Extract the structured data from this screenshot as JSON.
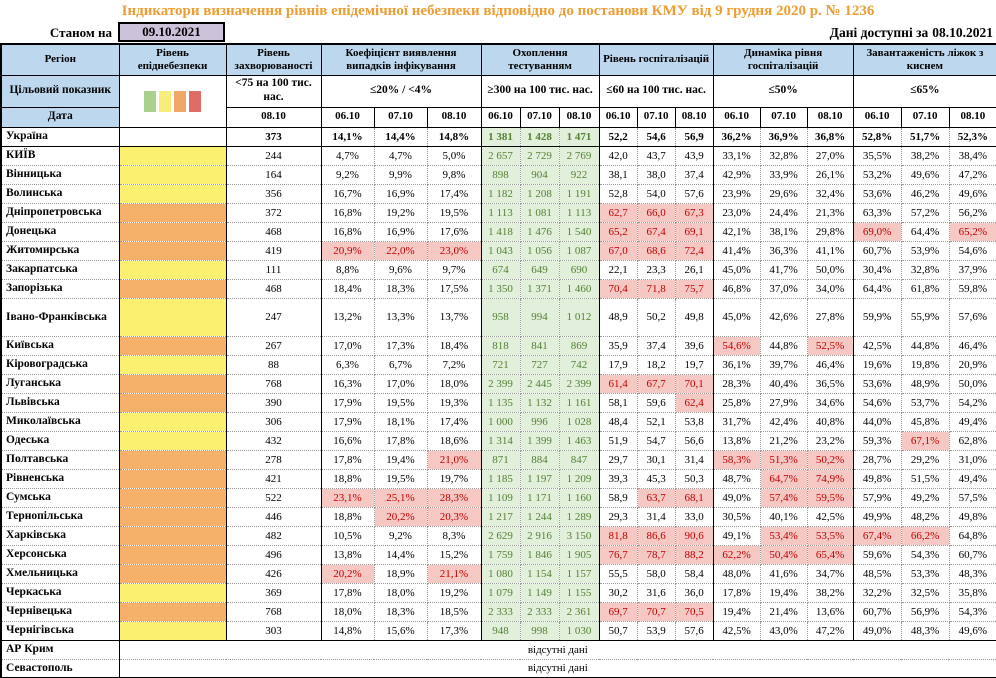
{
  "title": "Індикатори визначення рівнів епідемічної небезпеки відповідно до постанови КМУ від 9 грудня 2020 р. № 1236",
  "topbar": {
    "as_of_label": "Станом на",
    "as_of_date": "09.10.2021",
    "available_label": "Дані доступні за",
    "available_date": "08.10.2021"
  },
  "header": {
    "region_label": "Регіон",
    "target_label": "Цільовий показник",
    "date_label": "Дата",
    "legend_colors": [
      "#A9D18E",
      "#F7EE7A",
      "#F0A868",
      "#DD6B66"
    ],
    "groups": [
      {
        "label": "Рівень епіднебезпеки",
        "target": "",
        "dates": []
      },
      {
        "label": "Рівень захворюваності",
        "target": "<75 на 100 тис. нас.",
        "dates": [
          "08.10"
        ]
      },
      {
        "label": "Коефіцієнт виявлення випадків інфікування",
        "target": "≤20% / <4%",
        "dates": [
          "06.10",
          "07.10",
          "08.10"
        ]
      },
      {
        "label": "Охоплення тестуванням",
        "target": "≥300 на 100 тис. нас.",
        "dates": [
          "06.10",
          "07.10",
          "08.10"
        ]
      },
      {
        "label": "Рівень госпіталізацій",
        "target": "≤60 на 100 тис. нас.",
        "dates": [
          "06.10",
          "07.10",
          "08.10"
        ]
      },
      {
        "label": "Динаміка рівня госпіталізацій",
        "target": "≤50%",
        "dates": [
          "06.10",
          "07.10",
          "08.10"
        ]
      },
      {
        "label": "Завантаженість ліжок з киснем",
        "target": "≤65%",
        "dates": [
          "06.10",
          "07.10",
          "08.10"
        ]
      }
    ]
  },
  "colors": {
    "green": "#A9D18E",
    "yellow": "#FBF06F",
    "orange": "#F5B06A",
    "red": "#DD6B66"
  },
  "rows": [
    {
      "region": "Україна",
      "level": "",
      "bold": true,
      "inc": "373",
      "coef": [
        "14,1%",
        "14,4%",
        "14,8%"
      ],
      "test": [
        "1 381",
        "1 428",
        "1 471"
      ],
      "hosp": [
        "52,2",
        "54,6",
        "56,9"
      ],
      "dyn": [
        "36,2%",
        "36,9%",
        "36,8%"
      ],
      "bed": [
        "52,8%",
        "51,7%",
        "52,3%"
      ]
    },
    {
      "region": "КИЇВ",
      "level": "yellow",
      "inc": "244",
      "coef": [
        "4,7%",
        "4,7%",
        "5,0%"
      ],
      "test": [
        "2 657",
        "2 729",
        "2 769"
      ],
      "hosp": [
        "42,0",
        "43,7",
        "43,9"
      ],
      "dyn": [
        "33,1%",
        "32,8%",
        "27,0%"
      ],
      "bed": [
        "35,5%",
        "38,2%",
        "38,4%"
      ]
    },
    {
      "region": "Вінницька",
      "level": "yellow",
      "inc": "164",
      "coef": [
        "9,2%",
        "9,9%",
        "9,8%"
      ],
      "test": [
        "898",
        "904",
        "922"
      ],
      "hosp": [
        "38,1",
        "38,0",
        "37,4"
      ],
      "dyn": [
        "42,9%",
        "33,9%",
        "26,1%"
      ],
      "bed": [
        "53,2%",
        "49,6%",
        "47,2%"
      ]
    },
    {
      "region": "Волинська",
      "level": "yellow",
      "inc": "356",
      "coef": [
        "16,7%",
        "16,9%",
        "17,4%"
      ],
      "test": [
        "1 182",
        "1 208",
        "1 191"
      ],
      "hosp": [
        "52,8",
        "54,0",
        "57,6"
      ],
      "dyn": [
        "23,9%",
        "29,6%",
        "32,4%"
      ],
      "bed": [
        "53,6%",
        "46,2%",
        "49,6%"
      ]
    },
    {
      "region": "Дніпропетровська",
      "level": "orange",
      "inc": "372",
      "coef": [
        "16,8%",
        "19,2%",
        "19,5%"
      ],
      "test": [
        "1 113",
        "1 081",
        "1 113"
      ],
      "hosp": [
        "62,7",
        "66,0",
        "67,3"
      ],
      "hosp_hl": [
        1,
        1,
        1
      ],
      "dyn": [
        "23,0%",
        "24,4%",
        "21,3%"
      ],
      "bed": [
        "63,3%",
        "57,2%",
        "56,2%"
      ]
    },
    {
      "region": "Донецька",
      "level": "orange",
      "inc": "468",
      "coef": [
        "16,8%",
        "16,9%",
        "17,6%"
      ],
      "test": [
        "1 418",
        "1 476",
        "1 540"
      ],
      "hosp": [
        "65,2",
        "67,4",
        "69,1"
      ],
      "hosp_hl": [
        1,
        1,
        1
      ],
      "dyn": [
        "42,1%",
        "38,1%",
        "29,8%"
      ],
      "bed": [
        "69,0%",
        "64,4%",
        "65,2%"
      ],
      "bed_hl": [
        1,
        0,
        1
      ]
    },
    {
      "region": "Житомирська",
      "level": "orange",
      "inc": "419",
      "coef": [
        "20,9%",
        "22,0%",
        "23,0%"
      ],
      "coef_hl": [
        1,
        1,
        1
      ],
      "test": [
        "1 043",
        "1 056",
        "1 087"
      ],
      "hosp": [
        "67,0",
        "68,6",
        "72,4"
      ],
      "hosp_hl": [
        1,
        1,
        1
      ],
      "dyn": [
        "41,4%",
        "36,3%",
        "41,1%"
      ],
      "bed": [
        "60,7%",
        "53,9%",
        "54,6%"
      ]
    },
    {
      "region": "Закарпатська",
      "level": "yellow",
      "inc": "111",
      "coef": [
        "8,8%",
        "9,6%",
        "9,7%"
      ],
      "test": [
        "674",
        "649",
        "690"
      ],
      "hosp": [
        "22,1",
        "23,3",
        "26,1"
      ],
      "dyn": [
        "45,0%",
        "41,7%",
        "50,0%"
      ],
      "bed": [
        "30,4%",
        "32,8%",
        "37,9%"
      ]
    },
    {
      "region": "Запорізька",
      "level": "orange",
      "inc": "468",
      "coef": [
        "18,4%",
        "18,3%",
        "17,5%"
      ],
      "test": [
        "1 350",
        "1 371",
        "1 460"
      ],
      "hosp": [
        "70,4",
        "71,8",
        "75,7"
      ],
      "hosp_hl": [
        1,
        1,
        1
      ],
      "dyn": [
        "46,8%",
        "37,0%",
        "34,0%"
      ],
      "bed": [
        "64,4%",
        "61,8%",
        "59,8%"
      ]
    },
    {
      "region": "Івано-Франківська",
      "level": "yellow",
      "tall": true,
      "inc": "247",
      "coef": [
        "13,2%",
        "13,3%",
        "13,7%"
      ],
      "test": [
        "958",
        "994",
        "1 012"
      ],
      "hosp": [
        "48,9",
        "50,2",
        "49,8"
      ],
      "dyn": [
        "45,0%",
        "42,6%",
        "27,8%"
      ],
      "bed": [
        "59,9%",
        "55,9%",
        "57,6%"
      ]
    },
    {
      "region": "Київська",
      "level": "orange",
      "inc": "267",
      "coef": [
        "17,0%",
        "17,3%",
        "18,4%"
      ],
      "test": [
        "818",
        "841",
        "869"
      ],
      "hosp": [
        "35,9",
        "37,4",
        "39,6"
      ],
      "dyn": [
        "54,6%",
        "44,8%",
        "52,5%"
      ],
      "dyn_hl": [
        1,
        0,
        1
      ],
      "bed": [
        "42,5%",
        "44,8%",
        "46,4%"
      ]
    },
    {
      "region": "Кіровоградська",
      "level": "yellow",
      "inc": "88",
      "coef": [
        "6,3%",
        "6,7%",
        "7,2%"
      ],
      "test": [
        "721",
        "727",
        "742"
      ],
      "hosp": [
        "17,9",
        "18,2",
        "19,7"
      ],
      "dyn": [
        "36,1%",
        "39,7%",
        "46,4%"
      ],
      "bed": [
        "19,6%",
        "19,8%",
        "20,9%"
      ]
    },
    {
      "region": "Луганська",
      "level": "orange",
      "inc": "768",
      "coef": [
        "16,3%",
        "17,0%",
        "18,0%"
      ],
      "test": [
        "2 399",
        "2 445",
        "2 399"
      ],
      "hosp": [
        "61,4",
        "67,7",
        "70,1"
      ],
      "hosp_hl": [
        1,
        1,
        1
      ],
      "dyn": [
        "28,3%",
        "40,4%",
        "36,5%"
      ],
      "bed": [
        "53,6%",
        "48,9%",
        "50,0%"
      ]
    },
    {
      "region": "Львівська",
      "level": "orange",
      "inc": "390",
      "coef": [
        "17,9%",
        "19,5%",
        "19,3%"
      ],
      "test": [
        "1 135",
        "1 132",
        "1 161"
      ],
      "hosp": [
        "58,1",
        "59,6",
        "62,4"
      ],
      "hosp_hl": [
        0,
        0,
        1
      ],
      "dyn": [
        "25,8%",
        "27,9%",
        "34,6%"
      ],
      "bed": [
        "54,6%",
        "53,7%",
        "54,2%"
      ]
    },
    {
      "region": "Миколаївська",
      "level": "yellow",
      "inc": "306",
      "coef": [
        "17,9%",
        "18,1%",
        "17,4%"
      ],
      "test": [
        "1 000",
        "996",
        "1 028"
      ],
      "hosp": [
        "48,4",
        "52,1",
        "53,8"
      ],
      "dyn": [
        "31,7%",
        "42,4%",
        "40,8%"
      ],
      "bed": [
        "44,0%",
        "45,8%",
        "49,4%"
      ]
    },
    {
      "region": "Одеська",
      "level": "yellow",
      "inc": "432",
      "coef": [
        "16,6%",
        "17,8%",
        "18,6%"
      ],
      "test": [
        "1 314",
        "1 399",
        "1 463"
      ],
      "hosp": [
        "51,9",
        "54,7",
        "56,6"
      ],
      "dyn": [
        "13,8%",
        "21,2%",
        "23,2%"
      ],
      "bed": [
        "59,3%",
        "67,1%",
        "62,8%"
      ],
      "bed_hl": [
        0,
        1,
        0
      ]
    },
    {
      "region": "Полтавська",
      "level": "orange",
      "inc": "278",
      "coef": [
        "17,8%",
        "19,4%",
        "21,0%"
      ],
      "coef_hl": [
        0,
        0,
        1
      ],
      "test": [
        "871",
        "884",
        "847"
      ],
      "hosp": [
        "29,7",
        "30,1",
        "31,4"
      ],
      "dyn": [
        "58,3%",
        "51,3%",
        "50,2%"
      ],
      "dyn_hl": [
        1,
        1,
        1
      ],
      "bed": [
        "28,7%",
        "29,2%",
        "31,0%"
      ]
    },
    {
      "region": "Рівненська",
      "level": "orange",
      "inc": "421",
      "coef": [
        "18,8%",
        "19,5%",
        "19,7%"
      ],
      "test": [
        "1 185",
        "1 197",
        "1 209"
      ],
      "hosp": [
        "39,3",
        "45,3",
        "50,3"
      ],
      "dyn": [
        "48,7%",
        "64,7%",
        "74,9%"
      ],
      "dyn_hl": [
        0,
        1,
        1
      ],
      "bed": [
        "49,8%",
        "51,5%",
        "49,4%"
      ]
    },
    {
      "region": "Сумська",
      "level": "orange",
      "inc": "522",
      "coef": [
        "23,1%",
        "25,1%",
        "28,3%"
      ],
      "coef_hl": [
        1,
        1,
        1
      ],
      "test": [
        "1 109",
        "1 171",
        "1 160"
      ],
      "hosp": [
        "58,9",
        "63,7",
        "68,1"
      ],
      "hosp_hl": [
        0,
        1,
        1
      ],
      "dyn": [
        "49,0%",
        "57,4%",
        "59,5%"
      ],
      "dyn_hl": [
        0,
        1,
        1
      ],
      "bed": [
        "57,9%",
        "49,2%",
        "57,5%"
      ]
    },
    {
      "region": "Тернопільська",
      "level": "orange",
      "inc": "446",
      "coef": [
        "18,8%",
        "20,2%",
        "20,3%"
      ],
      "coef_hl": [
        0,
        1,
        1
      ],
      "test": [
        "1 217",
        "1 244",
        "1 289"
      ],
      "hosp": [
        "29,3",
        "31,4",
        "33,0"
      ],
      "dyn": [
        "30,5%",
        "40,1%",
        "42,5%"
      ],
      "bed": [
        "49,9%",
        "48,2%",
        "49,8%"
      ]
    },
    {
      "region": "Харківська",
      "level": "orange",
      "inc": "482",
      "coef": [
        "10,5%",
        "9,2%",
        "8,3%"
      ],
      "test": [
        "2 629",
        "2 916",
        "3 150"
      ],
      "hosp": [
        "81,8",
        "86,6",
        "90,6"
      ],
      "hosp_hl": [
        1,
        1,
        1
      ],
      "dyn": [
        "49,1%",
        "53,4%",
        "53,5%"
      ],
      "dyn_hl": [
        0,
        1,
        1
      ],
      "bed": [
        "67,4%",
        "66,2%",
        "64,8%"
      ],
      "bed_hl": [
        1,
        1,
        0
      ]
    },
    {
      "region": "Херсонська",
      "level": "orange",
      "inc": "496",
      "coef": [
        "13,8%",
        "14,4%",
        "15,2%"
      ],
      "test": [
        "1 759",
        "1 846",
        "1 905"
      ],
      "hosp": [
        "76,7",
        "78,7",
        "88,2"
      ],
      "hosp_hl": [
        1,
        1,
        1
      ],
      "dyn": [
        "62,2%",
        "50,4%",
        "65,4%"
      ],
      "dyn_hl": [
        1,
        1,
        1
      ],
      "bed": [
        "59,6%",
        "54,3%",
        "60,7%"
      ]
    },
    {
      "region": "Хмельницька",
      "level": "orange",
      "inc": "426",
      "coef": [
        "20,2%",
        "18,9%",
        "21,1%"
      ],
      "coef_hl": [
        1,
        0,
        1
      ],
      "test": [
        "1 080",
        "1 154",
        "1 157"
      ],
      "hosp": [
        "55,5",
        "58,0",
        "58,4"
      ],
      "dyn": [
        "48,0%",
        "41,6%",
        "34,7%"
      ],
      "bed": [
        "48,5%",
        "53,3%",
        "48,3%"
      ]
    },
    {
      "region": "Черкаська",
      "level": "yellow",
      "inc": "369",
      "coef": [
        "17,8%",
        "18,0%",
        "19,2%"
      ],
      "test": [
        "1 079",
        "1 149",
        "1 155"
      ],
      "hosp": [
        "30,2",
        "31,6",
        "36,0"
      ],
      "dyn": [
        "17,8%",
        "19,4%",
        "38,2%"
      ],
      "bed": [
        "32,2%",
        "32,5%",
        "35,8%"
      ]
    },
    {
      "region": "Чернівецька",
      "level": "orange",
      "inc": "768",
      "coef": [
        "18,0%",
        "18,3%",
        "18,5%"
      ],
      "test": [
        "2 333",
        "2 333",
        "2 361"
      ],
      "hosp": [
        "69,7",
        "70,7",
        "70,5"
      ],
      "hosp_hl": [
        1,
        1,
        1
      ],
      "dyn": [
        "19,4%",
        "21,4%",
        "13,6%"
      ],
      "bed": [
        "60,7%",
        "56,9%",
        "54,3%"
      ]
    },
    {
      "region": "Чернігівська",
      "level": "yellow",
      "inc": "303",
      "coef": [
        "14,8%",
        "15,6%",
        "17,3%"
      ],
      "test": [
        "948",
        "998",
        "1 030"
      ],
      "hosp": [
        "50,7",
        "53,9",
        "57,6"
      ],
      "dyn": [
        "42,5%",
        "43,0%",
        "47,2%"
      ],
      "bed": [
        "49,0%",
        "48,3%",
        "49,6%"
      ]
    }
  ],
  "no_data": [
    {
      "region": "АР Крим",
      "text": "відсутні дані"
    },
    {
      "region": "Севастополь",
      "text": "відсутні дані"
    }
  ]
}
